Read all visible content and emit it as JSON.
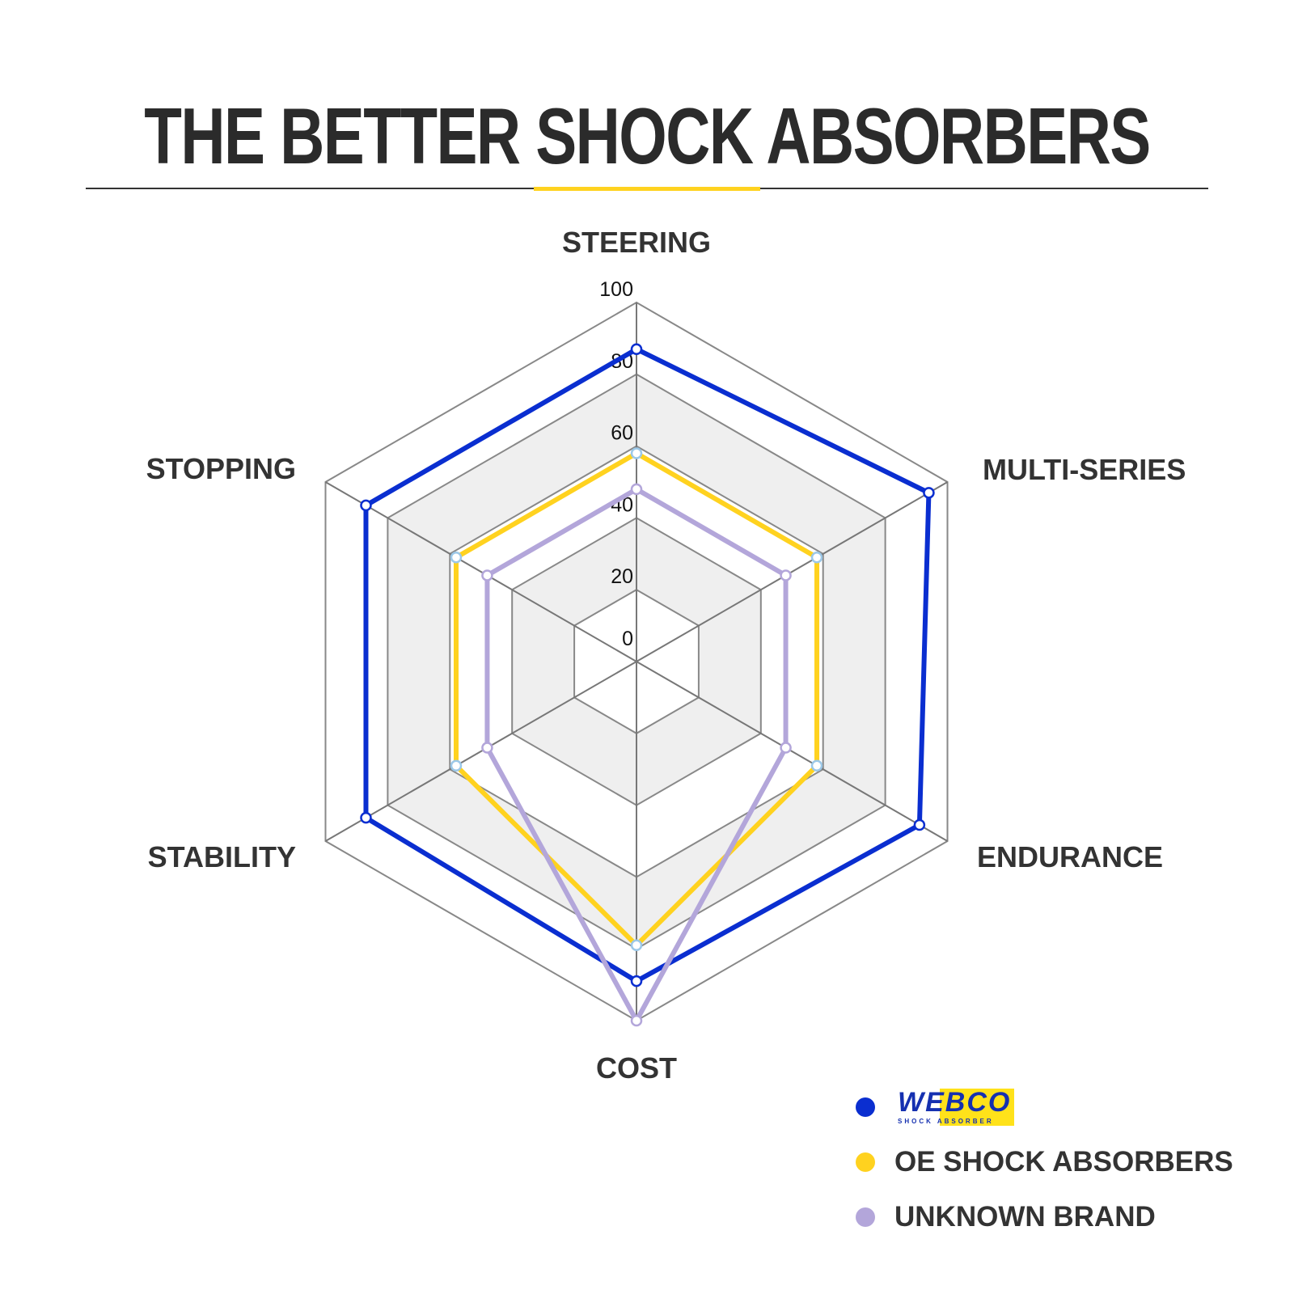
{
  "title": "THE BETTER SHOCK ABSORBERS",
  "chart_data": {
    "type": "radar",
    "categories": [
      "STEERING",
      "MULTI-SERIES",
      "ENDURANCE",
      "COST",
      "STABILITY",
      "STOPPING"
    ],
    "rlim": [
      0,
      100
    ],
    "ticks": [
      "0",
      "20",
      "40",
      "60",
      "80",
      "100"
    ],
    "series": [
      {
        "name": "WEBCO SHOCK ABSORBER",
        "color": "#0a2ed0",
        "values": [
          87,
          94,
          91,
          89,
          87,
          87
        ]
      },
      {
        "name": "OE SHOCK ABSORBERS",
        "color": "#ffd21f",
        "values": [
          58,
          58,
          58,
          79,
          58,
          58
        ]
      },
      {
        "name": "UNKNOWN BRAND",
        "color": "#b3a6da",
        "values": [
          48,
          48,
          48,
          100,
          48,
          48
        ]
      }
    ],
    "legend_position": "bottom-right",
    "grid": true
  },
  "legend": {
    "logo_text": "WEBCO",
    "logo_sub": "SHOCK ABSORBER",
    "oe": "OE SHOCK ABSORBERS",
    "unknown": "UNKNOWN BRAND"
  }
}
